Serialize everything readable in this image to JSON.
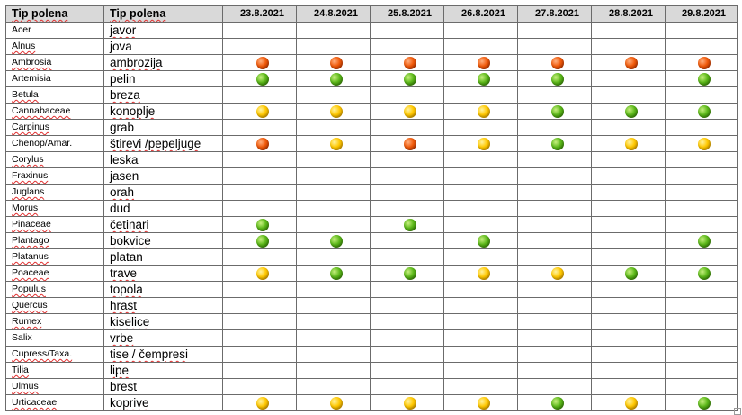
{
  "header": {
    "col1": "Tip polena",
    "col2": "Tip polena",
    "dates": [
      "23.8.2021",
      "24.8.2021",
      "25.8.2021",
      "26.8.2021",
      "27.8.2021",
      "28.8.2021",
      "29.8.2021"
    ]
  },
  "legend_colors": {
    "red": "#f05a0a",
    "yellow": "#ffc800",
    "green": "#5cb81a"
  },
  "rows": [
    {
      "latin": "Acer",
      "local": "javor",
      "levels": [
        "",
        "",
        "",
        "",
        "",
        "",
        ""
      ]
    },
    {
      "latin": "Alnus",
      "local": "jova",
      "levels": [
        "",
        "",
        "",
        "",
        "",
        "",
        ""
      ]
    },
    {
      "latin": "Ambrosia",
      "local": "ambrozija",
      "levels": [
        "red",
        "red",
        "red",
        "red",
        "red",
        "red",
        "red"
      ]
    },
    {
      "latin": "Artemisia",
      "local": "pelin",
      "levels": [
        "green",
        "green",
        "green",
        "green",
        "green",
        "",
        "green"
      ]
    },
    {
      "latin": "Betula",
      "local": "breza",
      "levels": [
        "",
        "",
        "",
        "",
        "",
        "",
        ""
      ]
    },
    {
      "latin": "Cannabaceae",
      "local": "konoplje",
      "levels": [
        "yellow",
        "yellow",
        "yellow",
        "yellow",
        "green",
        "green",
        "green"
      ]
    },
    {
      "latin": "Carpinus",
      "local": "grab",
      "levels": [
        "",
        "",
        "",
        "",
        "",
        "",
        ""
      ]
    },
    {
      "latin": "Chenop/Amar.",
      "local": "štirevi /pepeljuge",
      "levels": [
        "red",
        "yellow",
        "red",
        "yellow",
        "green",
        "yellow",
        "yellow"
      ]
    },
    {
      "latin": "Corylus",
      "local": "leska",
      "levels": [
        "",
        "",
        "",
        "",
        "",
        "",
        ""
      ]
    },
    {
      "latin": "Fraxinus",
      "local": "jasen",
      "levels": [
        "",
        "",
        "",
        "",
        "",
        "",
        ""
      ]
    },
    {
      "latin": "Juglans",
      "local": "orah",
      "levels": [
        "",
        "",
        "",
        "",
        "",
        "",
        ""
      ]
    },
    {
      "latin": "Morus",
      "local": "dud",
      "levels": [
        "",
        "",
        "",
        "",
        "",
        "",
        ""
      ]
    },
    {
      "latin": "Pinaceae",
      "local": "četinari",
      "levels": [
        "green",
        "",
        "green",
        "",
        "",
        "",
        ""
      ]
    },
    {
      "latin": "Plantago",
      "local": "bokvice",
      "levels": [
        "green",
        "green",
        "",
        "green",
        "",
        "",
        "green"
      ]
    },
    {
      "latin": "Platanus",
      "local": "platan",
      "levels": [
        "",
        "",
        "",
        "",
        "",
        "",
        ""
      ]
    },
    {
      "latin": "Poaceae",
      "local": "trave",
      "levels": [
        "yellow",
        "green",
        "green",
        "yellow",
        "yellow",
        "green",
        "green"
      ]
    },
    {
      "latin": "Populus",
      "local": "topola",
      "levels": [
        "",
        "",
        "",
        "",
        "",
        "",
        ""
      ]
    },
    {
      "latin": "Quercus",
      "local": "hrast",
      "levels": [
        "",
        "",
        "",
        "",
        "",
        "",
        ""
      ]
    },
    {
      "latin": "Rumex",
      "local": "kiselice",
      "levels": [
        "",
        "",
        "",
        "",
        "",
        "",
        ""
      ]
    },
    {
      "latin": "Salix",
      "local": "vrbe",
      "levels": [
        "",
        "",
        "",
        "",
        "",
        "",
        ""
      ]
    },
    {
      "latin": "Cupress/Taxa.",
      "local": "tise / čempresi",
      "levels": [
        "",
        "",
        "",
        "",
        "",
        "",
        ""
      ]
    },
    {
      "latin": "Tilia",
      "local": "lipe",
      "levels": [
        "",
        "",
        "",
        "",
        "",
        "",
        ""
      ]
    },
    {
      "latin": "Ulmus",
      "local": "brest",
      "levels": [
        "",
        "",
        "",
        "",
        "",
        "",
        ""
      ]
    },
    {
      "latin": "Urticaceae",
      "local": "koprive",
      "levels": [
        "yellow",
        "yellow",
        "yellow",
        "yellow",
        "green",
        "yellow",
        "green"
      ]
    }
  ]
}
